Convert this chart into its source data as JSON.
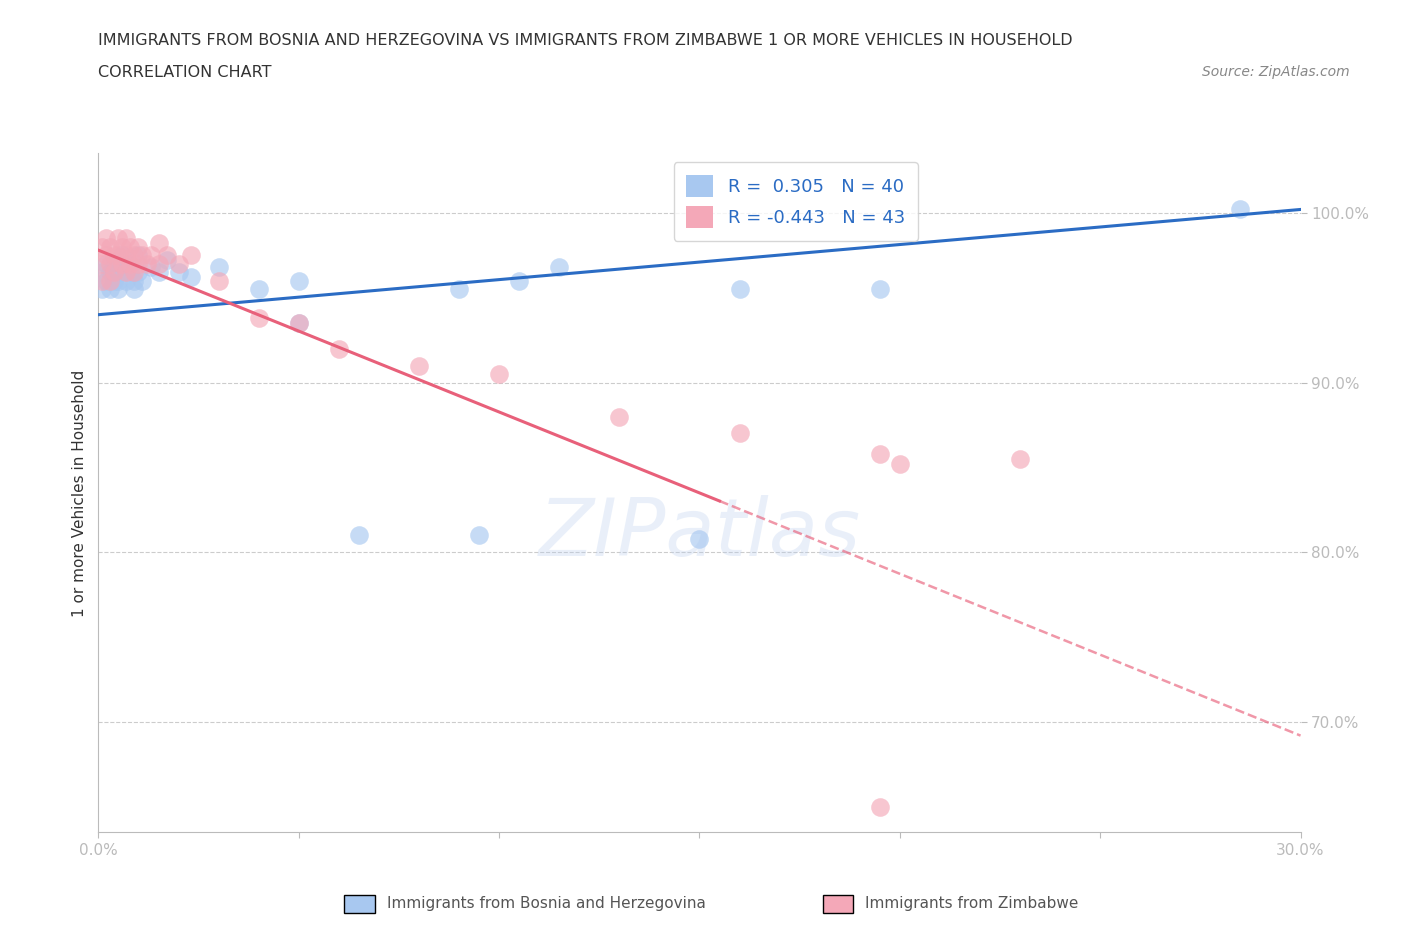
{
  "title": "IMMIGRANTS FROM BOSNIA AND HERZEGOVINA VS IMMIGRANTS FROM ZIMBABWE 1 OR MORE VEHICLES IN HOUSEHOLD",
  "subtitle": "CORRELATION CHART",
  "source": "Source: ZipAtlas.com",
  "ylabel": "1 or more Vehicles in Household",
  "watermark": "ZIPatlas",
  "x_min": 0.0,
  "x_max": 0.3,
  "y_min": 0.635,
  "y_max": 1.035,
  "y_ticks": [
    0.7,
    0.8,
    0.9,
    1.0
  ],
  "y_tick_labels": [
    "70.0%",
    "80.0%",
    "90.0%",
    "100.0%"
  ],
  "x_ticks": [
    0.0,
    0.05,
    0.1,
    0.15,
    0.2,
    0.25,
    0.3
  ],
  "x_tick_labels": [
    "0.0%",
    "",
    "",
    "",
    "",
    "",
    "30.0%"
  ],
  "bosnia_color": "#A8C8F0",
  "zimbabwe_color": "#F4A8B8",
  "bosnia_line_color": "#2B6CC4",
  "zimbabwe_line_color": "#E8607A",
  "legend_r_bosnia": "R =  0.305",
  "legend_n_bosnia": "N = 40",
  "legend_r_zimbabwe": "R = -0.443",
  "legend_n_zimbabwe": "N = 43",
  "bosnia_x": [
    0.001,
    0.001,
    0.002,
    0.002,
    0.003,
    0.003,
    0.004,
    0.004,
    0.005,
    0.005,
    0.005,
    0.006,
    0.006,
    0.007,
    0.007,
    0.008,
    0.008,
    0.009,
    0.009,
    0.01,
    0.01,
    0.011,
    0.013,
    0.015,
    0.017,
    0.02,
    0.023,
    0.03,
    0.04,
    0.05,
    0.065,
    0.09,
    0.105,
    0.16,
    0.195,
    0.285,
    0.05,
    0.095,
    0.15,
    0.115
  ],
  "bosnia_y": [
    0.965,
    0.955,
    0.97,
    0.96,
    0.965,
    0.955,
    0.96,
    0.97,
    0.965,
    0.955,
    0.96,
    0.965,
    0.975,
    0.97,
    0.96,
    0.965,
    0.97,
    0.96,
    0.955,
    0.965,
    0.975,
    0.96,
    0.968,
    0.965,
    0.972,
    0.965,
    0.962,
    0.968,
    0.955,
    0.96,
    0.81,
    0.955,
    0.96,
    0.955,
    0.955,
    1.002,
    0.935,
    0.81,
    0.808,
    0.968
  ],
  "zimbabwe_x": [
    0.001,
    0.001,
    0.001,
    0.002,
    0.002,
    0.003,
    0.003,
    0.003,
    0.004,
    0.004,
    0.005,
    0.005,
    0.006,
    0.006,
    0.007,
    0.007,
    0.007,
    0.008,
    0.008,
    0.009,
    0.009,
    0.01,
    0.01,
    0.011,
    0.012,
    0.013,
    0.015,
    0.015,
    0.017,
    0.02,
    0.023,
    0.03,
    0.04,
    0.05,
    0.06,
    0.08,
    0.1,
    0.13,
    0.16,
    0.195,
    0.2,
    0.23,
    0.195
  ],
  "zimbabwe_y": [
    0.98,
    0.97,
    0.96,
    0.985,
    0.975,
    0.98,
    0.97,
    0.96,
    0.975,
    0.965,
    0.985,
    0.975,
    0.98,
    0.97,
    0.985,
    0.975,
    0.965,
    0.98,
    0.97,
    0.975,
    0.965,
    0.98,
    0.97,
    0.975,
    0.97,
    0.975,
    0.982,
    0.97,
    0.975,
    0.97,
    0.975,
    0.96,
    0.938,
    0.935,
    0.92,
    0.91,
    0.905,
    0.88,
    0.87,
    0.858,
    0.852,
    0.855,
    0.65
  ],
  "zim_line_split_x": 0.155,
  "bosnia_line_x0": 0.0,
  "bosnia_line_x1": 0.3,
  "bosnia_line_y0": 0.94,
  "bosnia_line_y1": 1.002,
  "zim_line_x0": 0.0,
  "zim_line_x1": 0.3,
  "zim_line_y0": 0.978,
  "zim_line_y1": 0.692
}
